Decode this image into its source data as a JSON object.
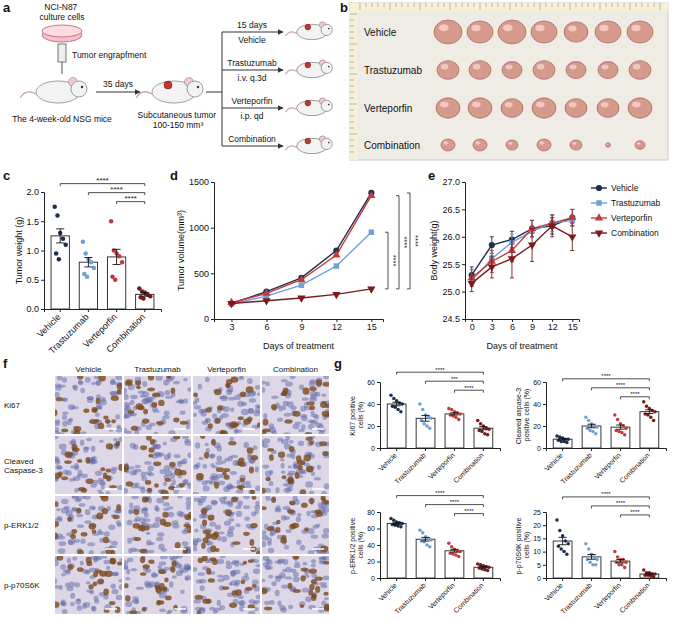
{
  "panel_labels": [
    "a",
    "b",
    "c",
    "d",
    "e",
    "f",
    "g"
  ],
  "schematic": {
    "cells": "NCI-N87 culture cells",
    "engraftment": "Tumor engrapfment",
    "mice": "The 4-week-old NSG mice",
    "interval": "35 days",
    "tumor": "Subcutaneous tumor 100-150 mm³",
    "duration": "15 days",
    "groups": [
      {
        "name": "Vehicle"
      },
      {
        "name": "Trastuzumab",
        "regimen": "i.v. q.3d"
      },
      {
        "name": "Verteporfin",
        "regimen": "i.p. qd"
      },
      {
        "name": "Combination"
      }
    ]
  },
  "photo": {
    "rows": [
      "Vehicle",
      "Trastuzumab",
      "Verteporfin",
      "Combination"
    ]
  },
  "ihc": {
    "rows": [
      "Ki67",
      "Cleaved Caspase-3",
      "p-ERK1/2",
      "p-p70S6K"
    ],
    "columns": [
      "Vehicle",
      "Trastuzumab",
      "Verteporfin",
      "Combination"
    ]
  },
  "chart_data": [
    {
      "type": "bar",
      "ylabel": "Tumor weight (g)",
      "categories": [
        "Vehicle",
        "Trastuzumab",
        "Verteporfin",
        "Combination"
      ],
      "values": [
        1.25,
        0.8,
        0.89,
        0.25
      ],
      "errors": [
        0.12,
        0.08,
        0.13,
        0.03
      ],
      "points": [
        [
          1.75,
          1.6,
          1.3,
          1.2,
          1.1,
          0.95,
          0.85
        ],
        [
          1.15,
          0.95,
          0.85,
          0.8,
          0.7,
          0.6,
          0.55
        ],
        [
          1.5,
          1.0,
          0.95,
          0.9,
          0.8,
          0.55,
          0.5
        ],
        [
          0.35,
          0.3,
          0.28,
          0.25,
          0.22,
          0.2,
          0.18
        ]
      ],
      "colors": [
        "#1b2f4f",
        "#6fa0d8",
        "#c23b3b",
        "#7a1a1a"
      ],
      "ylim": [
        0,
        2
      ],
      "yticks": [
        {
          "value": 0,
          "label": "0.0"
        },
        0.5,
        {
          "value": 1,
          "label": "1.0"
        },
        1.5,
        {
          "value": 2,
          "label": "2.0"
        }
      ],
      "annotations": [
        {
          "from": "Vehicle",
          "to": "Combination",
          "label": "****"
        },
        {
          "from": "Trastuzumab",
          "to": "Combination",
          "label": "****"
        },
        {
          "from": "Verteporfin",
          "to": "Combination",
          "label": "****"
        }
      ]
    },
    {
      "type": "line",
      "xlabel": "Days of treatment",
      "ylabel": "Tumor volume(mm³)",
      "x": [
        3,
        6,
        9,
        12,
        15
      ],
      "xlim": [
        1.5,
        16
      ],
      "xticks": [
        3,
        6,
        9,
        12,
        15
      ],
      "ylim": [
        0,
        1500
      ],
      "yticks": [
        0,
        500,
        1000,
        1500
      ],
      "series": [
        {
          "name": "Vehicle",
          "color": "#1b2f4f",
          "marker": "circle",
          "values": [
            170,
            300,
            450,
            750,
            1380
          ]
        },
        {
          "name": "Trastuzumab",
          "color": "#6fa0d8",
          "marker": "square",
          "values": [
            165,
            250,
            370,
            580,
            950
          ]
        },
        {
          "name": "Verteporfin",
          "color": "#c23b3b",
          "marker": "triangle-up",
          "values": [
            180,
            280,
            430,
            700,
            1350
          ]
        },
        {
          "name": "Combination",
          "color": "#7a1a1a",
          "marker": "triangle-down",
          "values": [
            170,
            200,
            230,
            270,
            330
          ]
        }
      ],
      "annotations": [
        {
          "from": "Vehicle",
          "to": "Combination",
          "label": "****"
        },
        {
          "from": "Trastuzumab",
          "to": "Combination",
          "label": "****"
        },
        {
          "from": "Verteporfin",
          "to": "Combination",
          "label": "****"
        }
      ]
    },
    {
      "type": "line",
      "xlabel": "Days of treatment",
      "ylabel": "Body weight(g)",
      "x": [
        0,
        3,
        6,
        9,
        12,
        15
      ],
      "xlim": [
        -1,
        16
      ],
      "xticks": [
        0,
        3,
        6,
        9,
        12,
        15
      ],
      "ylim": [
        24.5,
        27
      ],
      "yticks": [
        24.5,
        {
          "value": 25,
          "label": "25.0"
        },
        25.5,
        {
          "value": 26,
          "label": "26.0"
        },
        26.5,
        {
          "value": 27,
          "label": "27.0"
        }
      ],
      "legend": "right",
      "series": [
        {
          "name": "Vehicle",
          "color": "#1b2f4f",
          "marker": "circle",
          "values": [
            25.3,
            25.85,
            25.95,
            26.15,
            26.2,
            26.35
          ],
          "errors": [
            0.15,
            0.15,
            0.15,
            0.15,
            0.15,
            0.15
          ]
        },
        {
          "name": "Trastuzumab",
          "color": "#6fa0d8",
          "marker": "square",
          "values": [
            25.2,
            25.6,
            25.9,
            26.1,
            26.25,
            26.3
          ],
          "errors": [
            0.1,
            0.15,
            0.15,
            0.1,
            0.15,
            0.1
          ]
        },
        {
          "name": "Verteporfin",
          "color": "#c23b3b",
          "marker": "triangle-up",
          "values": [
            25.25,
            25.55,
            25.75,
            26.15,
            26.25,
            26.35
          ],
          "errors": [
            0.15,
            0.2,
            0.2,
            0.15,
            0.1,
            0.15
          ]
        },
        {
          "name": "Combination",
          "color": "#7a1a1a",
          "marker": "triangle-down",
          "values": [
            25.15,
            25.45,
            25.6,
            25.85,
            26.2,
            26.0
          ],
          "errors": [
            0.15,
            0.2,
            0.35,
            0.3,
            0.2,
            0.25
          ]
        }
      ]
    },
    {
      "type": "bar",
      "ylabel": "Ki67 positive cells (%)",
      "categories": [
        "Vehicle",
        "Trastuzumab",
        "Verteporfin",
        "Combination"
      ],
      "values": [
        40,
        27,
        31,
        18
      ],
      "errors": [
        1.6,
        2.6,
        1,
        1.4
      ],
      "points": [
        [
          48,
          45,
          43,
          41,
          40,
          38,
          37,
          35,
          33
        ],
        [
          40,
          35,
          30,
          28,
          27,
          25,
          22,
          20,
          18
        ],
        [
          36,
          35,
          33,
          32,
          31,
          30,
          29,
          28,
          26
        ],
        [
          25,
          22,
          20,
          18,
          17,
          16,
          15,
          13,
          12
        ]
      ],
      "colors": [
        "#1b2f4f",
        "#6fa0d8",
        "#c23b3b",
        "#7a1a1a"
      ],
      "ylim": [
        0,
        60
      ],
      "yticks": [
        0,
        20,
        40,
        60
      ],
      "annotations": [
        {
          "from": "Vehicle",
          "to": "Combination",
          "label": "****"
        },
        {
          "from": "Trastuzumab",
          "to": "Combination",
          "label": "***"
        },
        {
          "from": "Verteporfin",
          "to": "Combination",
          "label": "****"
        }
      ]
    },
    {
      "type": "bar",
      "ylabel": "Cleaved aspase-3 positive cells (%)",
      "categories": [
        "Vehicle",
        "Trastuzumab",
        "Verteporfin",
        "Combination"
      ],
      "values": [
        8,
        20,
        19,
        33
      ],
      "errors": [
        0.6,
        1.6,
        1.9,
        1.7
      ],
      "points": [
        [
          11,
          10,
          9,
          8,
          8,
          7,
          6,
          6,
          5
        ],
        [
          28,
          25,
          22,
          20,
          19,
          18,
          16,
          15,
          13
        ],
        [
          30,
          26,
          22,
          20,
          18,
          16,
          15,
          14,
          12
        ],
        [
          42,
          38,
          36,
          34,
          33,
          31,
          30,
          28,
          25
        ]
      ],
      "colors": [
        "#1b2f4f",
        "#6fa0d8",
        "#c23b3b",
        "#7a1a1a"
      ],
      "ylim": [
        0,
        60
      ],
      "yticks": [
        0,
        20,
        40,
        60
      ],
      "annotations": [
        {
          "from": "Vehicle",
          "to": "Combination",
          "label": "****"
        },
        {
          "from": "Trastuzumab",
          "to": "Combination",
          "label": "****"
        },
        {
          "from": "Verteporfin",
          "to": "Combination",
          "label": "****"
        }
      ]
    },
    {
      "type": "bar",
      "ylabel": "p-ERK1/2 positive cells (%)",
      "categories": [
        "Vehicle",
        "Trastuzumab",
        "Verteporfin",
        "Combination"
      ],
      "values": [
        66,
        47,
        33,
        13
      ],
      "errors": [
        1.1,
        2.2,
        1.7,
        0.9
      ],
      "points": [
        [
          72,
          70,
          68,
          67,
          66,
          65,
          64,
          63,
          62
        ],
        [
          58,
          55,
          50,
          48,
          46,
          45,
          44,
          40,
          38
        ],
        [
          42,
          38,
          35,
          33,
          32,
          30,
          29,
          28,
          26
        ],
        [
          17,
          16,
          15,
          14,
          13,
          12,
          11,
          10,
          9
        ]
      ],
      "colors": [
        "#1b2f4f",
        "#6fa0d8",
        "#c23b3b",
        "#7a1a1a"
      ],
      "ylim": [
        0,
        80
      ],
      "yticks": [
        0,
        20,
        40,
        60,
        80
      ],
      "annotations": [
        {
          "from": "Vehicle",
          "to": "Combination",
          "label": "****"
        },
        {
          "from": "Trastuzumab",
          "to": "Combination",
          "label": "****"
        },
        {
          "from": "Verteporfin",
          "to": "Combination",
          "label": "****"
        }
      ]
    },
    {
      "type": "bar",
      "ylabel": "p-p70S6K positive cells (%)",
      "categories": [
        "Vehicle",
        "Trastuzumab",
        "Verteporfin",
        "Combination"
      ],
      "values": [
        14,
        8,
        6.4,
        1.5
      ],
      "errors": [
        1.4,
        0.9,
        0.6,
        0.3
      ],
      "points": [
        [
          22,
          18,
          16,
          14,
          13,
          12,
          11,
          10,
          9
        ],
        [
          13,
          11,
          9,
          8,
          7,
          7,
          6,
          5,
          5
        ],
        [
          10,
          8,
          7,
          7,
          6,
          6,
          5,
          5,
          4
        ],
        [
          3,
          2,
          2,
          1.5,
          1.5,
          1,
          1,
          0.8,
          0.5
        ]
      ],
      "colors": [
        "#1b2f4f",
        "#6fa0d8",
        "#c23b3b",
        "#7a1a1a"
      ],
      "ylim": [
        0,
        25
      ],
      "yticks": [
        0,
        5,
        10,
        15,
        20,
        25
      ],
      "annotations": [
        {
          "from": "Vehicle",
          "to": "Combination",
          "label": "****"
        },
        {
          "from": "Trastuzumab",
          "to": "Combination",
          "label": "****"
        },
        {
          "from": "Verteporfin",
          "to": "Combination",
          "label": "****"
        }
      ]
    }
  ]
}
